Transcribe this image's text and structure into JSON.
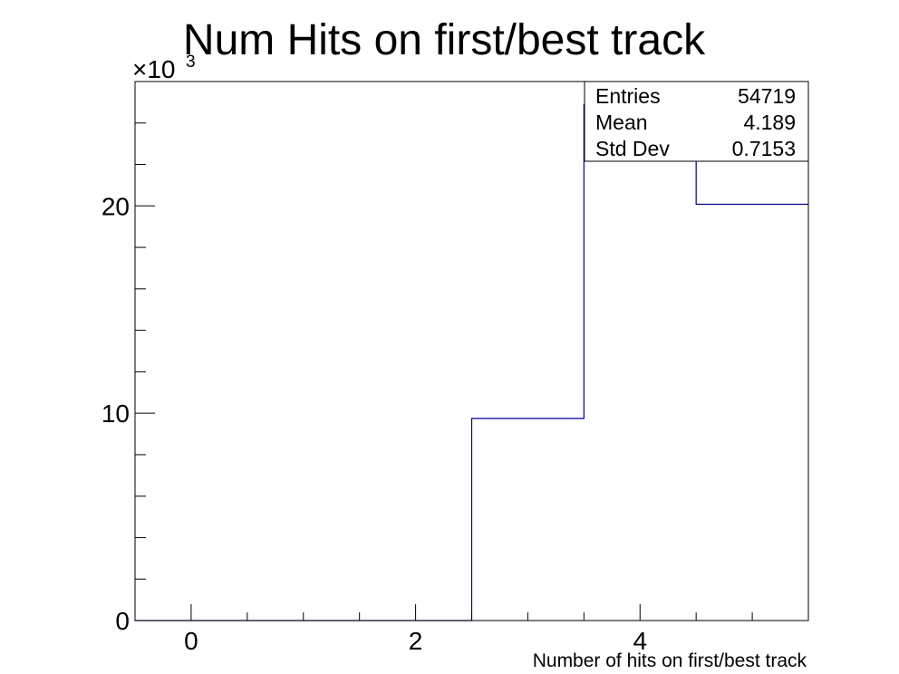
{
  "chart_data": {
    "type": "bar",
    "title": "Num Hits on first/best track",
    "xlabel": "Number of hits on first/best track",
    "ylabel": "",
    "y_multiplier": "×10",
    "y_multiplier_exp": "3",
    "xlim": [
      -0.5,
      5.5
    ],
    "ylim": [
      0,
      26000
    ],
    "x_ticks": [
      0,
      2,
      4
    ],
    "x_tick_labels": [
      "0",
      "2",
      "4"
    ],
    "y_ticks": [
      0,
      10000,
      20000
    ],
    "y_tick_labels": [
      "0",
      "10",
      "20"
    ],
    "bins": [
      {
        "low": -0.5,
        "high": 0.5,
        "value": 0
      },
      {
        "low": 0.5,
        "high": 1.5,
        "value": 0
      },
      {
        "low": 1.5,
        "high": 2.5,
        "value": 0
      },
      {
        "low": 2.5,
        "high": 3.5,
        "value": 9750
      },
      {
        "low": 3.5,
        "high": 4.5,
        "value": 24900
      },
      {
        "low": 4.5,
        "high": 5.5,
        "value": 20080
      }
    ],
    "line_color": "#000099",
    "stats_box": {
      "entries_label": "Entries",
      "entries_value": "54719",
      "mean_label": "Mean",
      "mean_value": "4.189",
      "stddev_label": "Std Dev",
      "stddev_value": "0.7153"
    },
    "legend_position": "top-right",
    "grid": false
  }
}
